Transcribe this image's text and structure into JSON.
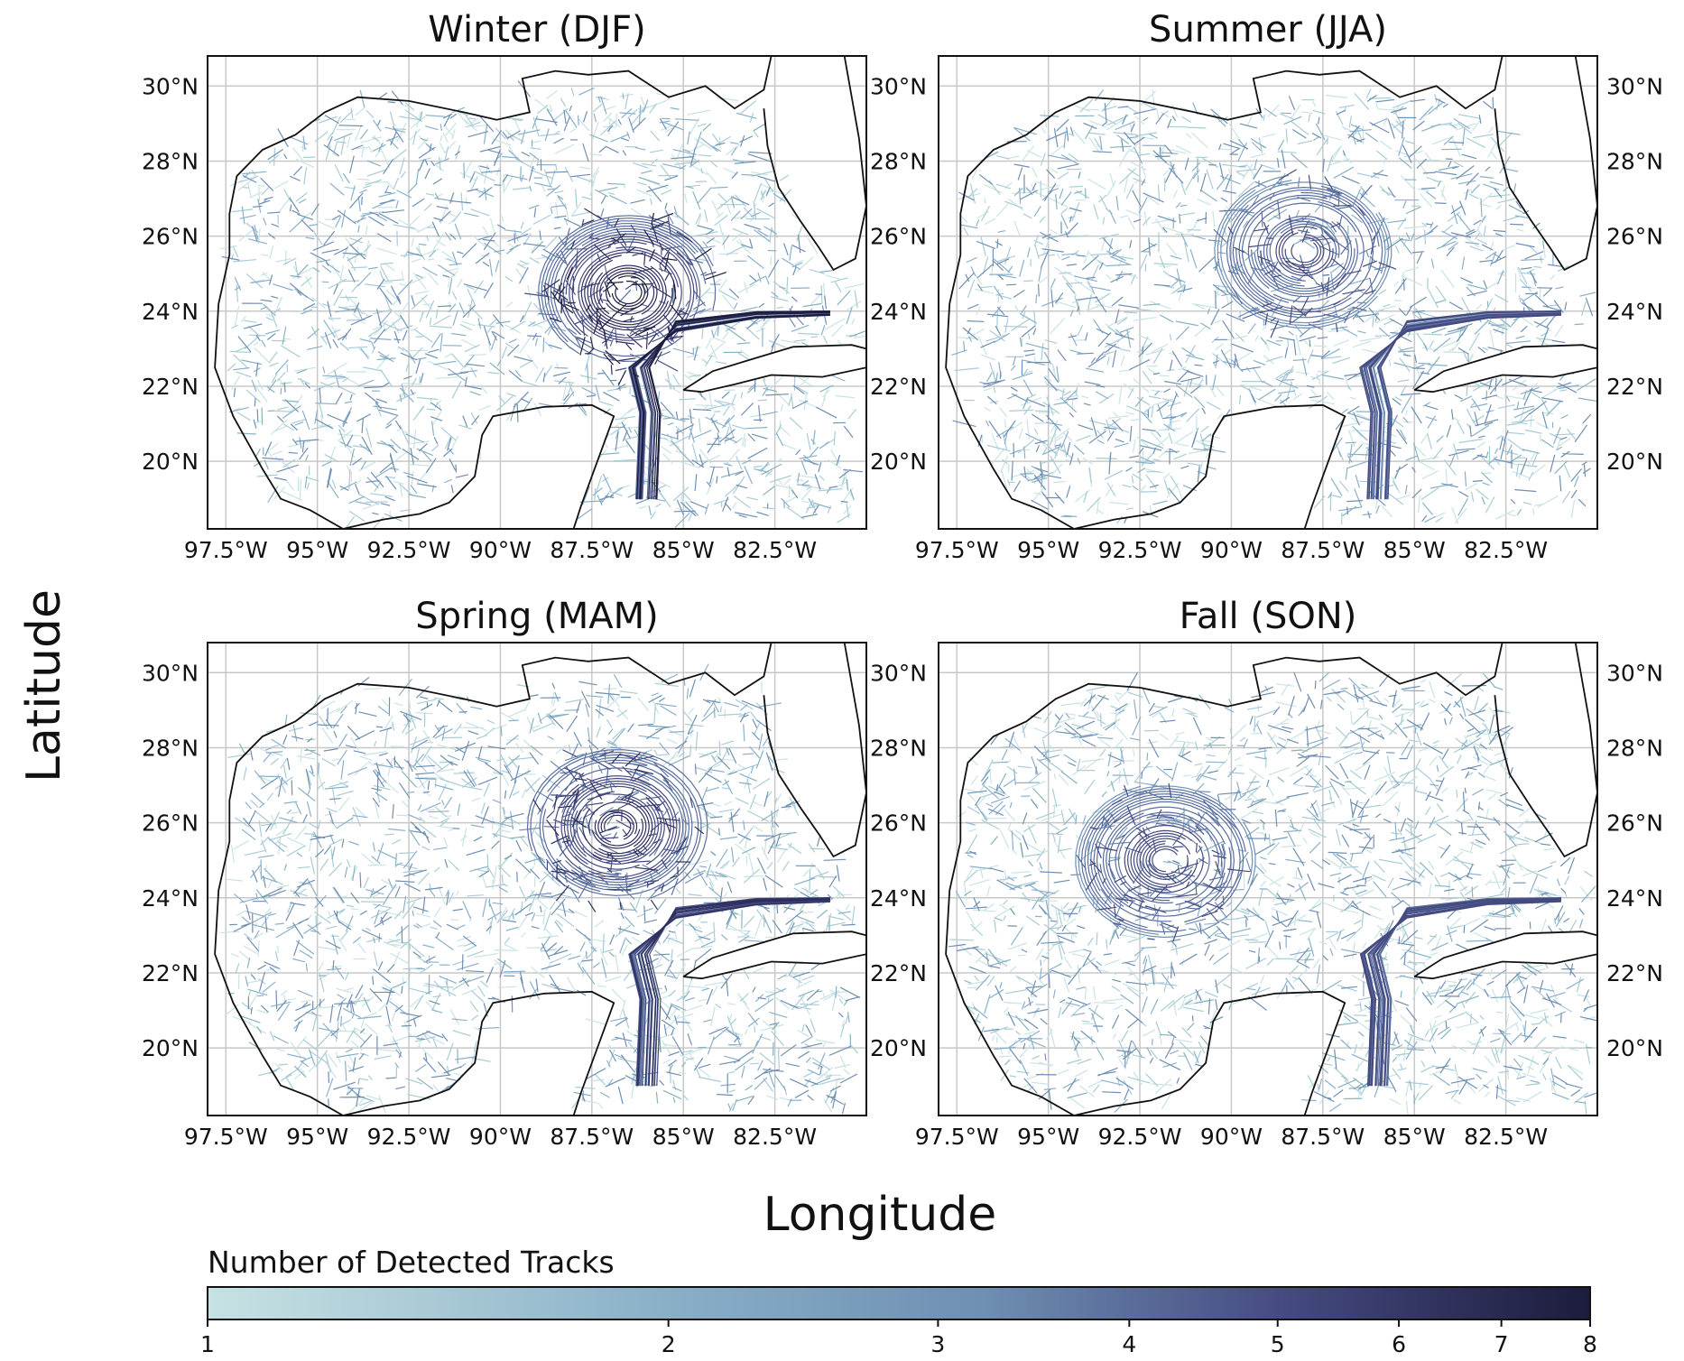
{
  "figure": {
    "ylabel": "Latitude",
    "xlabel": "Longitude",
    "colorbar": {
      "title": "Number of Detected Tracks",
      "ticks": [
        "1",
        "2",
        "3",
        "4",
        "5",
        "6",
        "7",
        "8"
      ],
      "min": 1,
      "max": 8,
      "scale": "log",
      "color_low": "#c7e2e3",
      "color_mid": "#6f8fb3",
      "color_high": "#1c1c3c"
    }
  },
  "map_axes": {
    "lon_range": [
      -98.0,
      -80.0
    ],
    "lat_range": [
      18.2,
      30.8
    ],
    "lon_ticks": [
      -97.5,
      -95,
      -92.5,
      -90,
      -87.5,
      -85,
      -82.5
    ],
    "lon_tick_labels": [
      "97.5°W",
      "95°W",
      "92.5°W",
      "90°W",
      "87.5°W",
      "85°W",
      "82.5°W"
    ],
    "lat_ticks": [
      20,
      22,
      24,
      26,
      28,
      30
    ],
    "lat_tick_labels": [
      "20°N",
      "22°N",
      "24°N",
      "26°N",
      "28°N",
      "30°N"
    ],
    "grid": true
  },
  "panels": [
    {
      "id": "winter",
      "title": "Winter (DJF)",
      "lat_labels_side": "left",
      "lc_strength": 1.0,
      "lc_core": [
        -86.5,
        24.5
      ]
    },
    {
      "id": "summer",
      "title": "Summer (JJA)",
      "lat_labels_side": "right",
      "lc_strength": 0.45,
      "lc_core": [
        -88.0,
        25.6
      ]
    },
    {
      "id": "spring",
      "title": "Spring (MAM)",
      "lat_labels_side": "left",
      "lc_strength": 0.85,
      "lc_core": [
        -86.8,
        25.9
      ]
    },
    {
      "id": "fall",
      "title": "Fall (SON)",
      "lat_labels_side": "right",
      "lc_strength": 0.55,
      "lc_core": [
        -91.8,
        25.0
      ]
    }
  ]
}
